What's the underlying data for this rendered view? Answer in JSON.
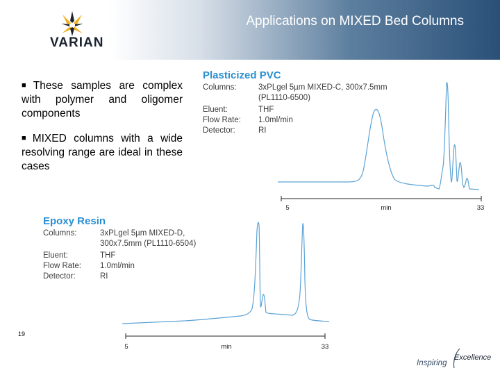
{
  "slide": {
    "title": "Applications on MIXED Bed Columns",
    "page_number": "19",
    "brand": "VARIAN",
    "tagline_part1": "Inspiring",
    "tagline_part2": "Excellence"
  },
  "bullets": [
    "These samples are complex with polymer and oligomer components",
    "MIXED columns with a wide resolving range are ideal in these cases"
  ],
  "pvc": {
    "title": "Plasticized PVC",
    "specs": [
      {
        "key": "Columns:",
        "value": "3xPLgel 5µm MIXED-C, 300x7.5mm"
      },
      {
        "key": "",
        "value": "(PL1110-6500)"
      },
      {
        "key": "Eluent:",
        "value": "THF"
      },
      {
        "key": "Flow Rate:",
        "value": "1.0ml/min"
      },
      {
        "key": "Detector:",
        "value": "RI"
      }
    ],
    "axis": {
      "start": "5",
      "label": "min",
      "end": "33"
    }
  },
  "epoxy": {
    "title": "Epoxy Resin",
    "specs": [
      {
        "key": "Columns:",
        "value": "3xPLgel 5µm MIXED-D,"
      },
      {
        "key": "",
        "value": "300x7.5mm (PL1110-6504)"
      },
      {
        "key": "Eluent:",
        "value": "THF"
      },
      {
        "key": "Flow Rate:",
        "value": "1.0ml/min"
      },
      {
        "key": "Detector:",
        "value": "RI"
      }
    ],
    "axis": {
      "start": "5",
      "label": "min",
      "end": "33"
    }
  },
  "colors": {
    "trace": "#5ba3d6",
    "panel_title": "#2b8fd2"
  }
}
